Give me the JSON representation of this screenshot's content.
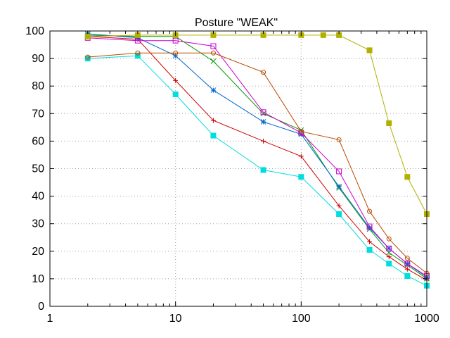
{
  "chart_data": {
    "type": "line",
    "title": "Posture \"WEAK\"",
    "xlabel": "",
    "ylabel": "",
    "xscale": "log",
    "xlim": [
      1,
      1000
    ],
    "ylim": [
      0,
      100
    ],
    "grid": true,
    "legend": "none",
    "x_ticks": [
      "1",
      "10",
      "100",
      "1000"
    ],
    "y_ticks": [
      "0",
      "10",
      "20",
      "30",
      "40",
      "50",
      "60",
      "70",
      "80",
      "90",
      "100"
    ],
    "series": [
      {
        "color": "#cc0000",
        "marker": "plus",
        "points": [
          [
            2,
            98
          ],
          [
            5,
            97
          ],
          [
            10,
            82
          ],
          [
            20,
            67.5
          ],
          [
            50,
            60
          ],
          [
            100,
            54.5
          ],
          [
            200,
            36.5
          ],
          [
            350,
            23.5
          ],
          [
            500,
            18
          ],
          [
            700,
            13.5
          ],
          [
            1000,
            9.5
          ]
        ]
      },
      {
        "color": "#009900",
        "marker": "x",
        "points": [
          [
            2,
            98.5
          ],
          [
            5,
            98
          ],
          [
            10,
            98
          ],
          [
            20,
            89
          ],
          [
            50,
            70
          ],
          [
            100,
            64
          ],
          [
            200,
            43
          ],
          [
            350,
            28
          ],
          [
            500,
            19.5
          ],
          [
            700,
            15
          ],
          [
            1000,
            10
          ]
        ]
      },
      {
        "color": "#0066cc",
        "marker": "star",
        "points": [
          [
            2,
            99
          ],
          [
            5,
            97.5
          ],
          [
            10,
            91
          ],
          [
            20,
            78.5
          ],
          [
            50,
            67
          ],
          [
            100,
            62.5
          ],
          [
            200,
            43.5
          ],
          [
            350,
            28.5
          ],
          [
            500,
            21
          ],
          [
            700,
            15.5
          ],
          [
            1000,
            10.5
          ]
        ]
      },
      {
        "color": "#cc00cc",
        "marker": "open-square",
        "points": [
          [
            2,
            97.5
          ],
          [
            5,
            96.5
          ],
          [
            10,
            96.5
          ],
          [
            20,
            94.5
          ],
          [
            50,
            70.5
          ],
          [
            100,
            63
          ],
          [
            200,
            49
          ],
          [
            350,
            29
          ],
          [
            500,
            21
          ],
          [
            700,
            15.5
          ],
          [
            1000,
            11
          ]
        ]
      },
      {
        "color": "#00dddd",
        "marker": "filled-square",
        "points": [
          [
            2,
            90
          ],
          [
            5,
            91
          ],
          [
            10,
            77
          ],
          [
            20,
            62
          ],
          [
            50,
            49.5
          ],
          [
            100,
            47
          ],
          [
            200,
            33.5
          ],
          [
            350,
            20.5
          ],
          [
            500,
            15.5
          ],
          [
            700,
            11
          ],
          [
            1000,
            7.5
          ]
        ]
      },
      {
        "color": "#b0b000",
        "marker": "filled-square",
        "points": [
          [
            2,
            98
          ],
          [
            5,
            98.5
          ],
          [
            10,
            98.5
          ],
          [
            20,
            98.5
          ],
          [
            50,
            98.5
          ],
          [
            100,
            98.5
          ],
          [
            150,
            98.5
          ],
          [
            200,
            98.5
          ],
          [
            350,
            93
          ],
          [
            500,
            66.5
          ],
          [
            700,
            47
          ],
          [
            1000,
            33.5
          ]
        ]
      },
      {
        "color": "#b84a00",
        "marker": "open-circle",
        "points": [
          [
            2,
            90.5
          ],
          [
            5,
            92
          ],
          [
            10,
            92
          ],
          [
            20,
            92
          ],
          [
            50,
            85
          ],
          [
            100,
            63.5
          ],
          [
            200,
            60.5
          ],
          [
            350,
            34.5
          ],
          [
            500,
            24.5
          ],
          [
            700,
            17.5
          ],
          [
            1000,
            12
          ]
        ]
      }
    ]
  }
}
